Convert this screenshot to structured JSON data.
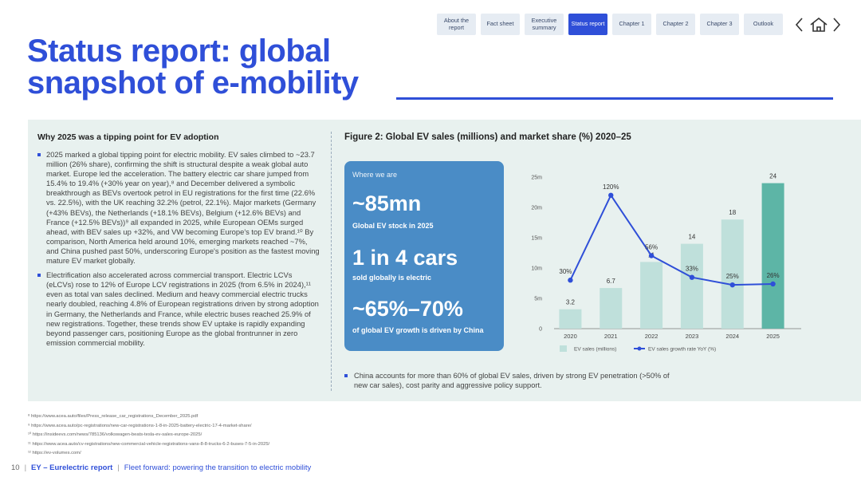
{
  "nav": {
    "items": [
      "About the report",
      "Fact sheet",
      "Executive summary",
      "Status report",
      "Chapter 1",
      "Chapter 2",
      "Chapter 3",
      "Outlook"
    ],
    "active": 3
  },
  "header": {
    "title": "Status report: global snapshot of e-mobility"
  },
  "left": {
    "heading": "Why 2025 was a tipping point for EV adoption",
    "bullets": [
      "2025 marked a global tipping point for electric mobility. EV sales climbed to ~23.7 million (26% share), confirming the shift is structural despite a weak global auto market. Europe led the acceleration. The battery electric car share jumped from 15.4% to 19.4% (+30% year on year),⁸ and December delivered a symbolic breakthrough as BEVs overtook petrol in EU registrations for the first time (22.6% vs. 22.5%), with the UK reaching 32.2% (petrol, 22.1%). Major markets (Germany (+43% BEVs), the Netherlands (+18.1% BEVs), Belgium (+12.6% BEVs) and France (+12.5% BEVs))⁹ all expanded in 2025, while European OEMs surged ahead, with BEV sales up +32%, and VW becoming Europe's top EV brand.¹⁰ By comparison, North America held around 10%, emerging markets reached ~7%, and China pushed past 50%, underscoring Europe's position as the fastest moving mature EV market globally.",
      "Electrification also accelerated across commercial transport. Electric LCVs (eLCVs) rose to 12% of Europe LCV registrations in 2025 (from 6.5% in 2024),¹¹ even as total van sales declined. Medium and heavy commercial electric trucks nearly doubled, reaching 4.8% of European registrations driven by strong adoption in Germany, the Netherlands and France, while electric buses reached 25.9% of new registrations. Together, these trends show EV uptake is rapidly expanding beyond passenger cars, positioning Europe as the global frontrunner in zero emission commercial mobility."
    ]
  },
  "figure": {
    "title": "Figure 2: Global EV sales (millions) and market share (%) 2020–25",
    "card": {
      "kicker": "Where we are",
      "stats": [
        {
          "value": "~85mn",
          "label": "Global EV stock in 2025"
        },
        {
          "value": "1 in 4 cars",
          "label": "sold globally is electric"
        },
        {
          "value": "~65%–70%",
          "label": "of global EV growth is driven by China"
        }
      ]
    },
    "note": "China accounts for more than 60% of global EV sales, driven by strong EV penetration (>50% of new car sales), cost parity and aggressive policy support."
  },
  "chart_data": {
    "type": "bar-line",
    "categories": [
      "2020",
      "2021",
      "2022",
      "2023",
      "2024",
      "2025"
    ],
    "series": [
      {
        "name": "EV sales (millions)",
        "type": "bar",
        "colors": [
          "#bfe0db",
          "#bfe0db",
          "#bfe0db",
          "#bfe0db",
          "#bfe0db",
          "#5db5a6"
        ],
        "color": "#bfe0db",
        "values": [
          3.2,
          6.7,
          11,
          14,
          18,
          24
        ]
      },
      {
        "name": "EV sales growth rate YoY (%)",
        "type": "line",
        "axis": "y2",
        "color": "#2f4fd8",
        "values": [
          30,
          120,
          56,
          33,
          25,
          26
        ],
        "value_labels": [
          "30%",
          "120%",
          "56%",
          "33%",
          "25%",
          "26%"
        ]
      }
    ],
    "ylim": [
      0,
      25
    ],
    "yticks": [
      0,
      {
        "value": 5,
        "label": "5m"
      },
      {
        "value": 10,
        "label": "10m"
      },
      {
        "value": 15,
        "label": "15m"
      },
      {
        "value": 20,
        "label": "20m"
      },
      {
        "value": 25,
        "label": "25m"
      }
    ],
    "y2lim": [
      -21.4,
      139.3
    ],
    "grid": false
  },
  "footnotes": [
    "⁸ https://www.acea.auto/files/Press_release_car_registrations_December_2025.pdf",
    "⁹ https://www.acea.auto/pc-registrations/new-car-registrations-1-8-in-2025-battery-electric-17-4-market-share/",
    "¹⁰ https://insideevs.com/news/785136/volkswagen-beats-tesla-ev-sales-europe-2025/",
    "¹¹ https://www.acea.auto/cv-registrations/new-commercial-vehicle-registrations-vans-8-8-trucks-6-2-buses-7-5-in-2025/",
    "¹² https://ev-volumes.com/"
  ],
  "footer": {
    "page": 10,
    "brand": "EY – Eurelectric report",
    "subtitle": "Fleet forward: powering the transition to electric mobility"
  }
}
